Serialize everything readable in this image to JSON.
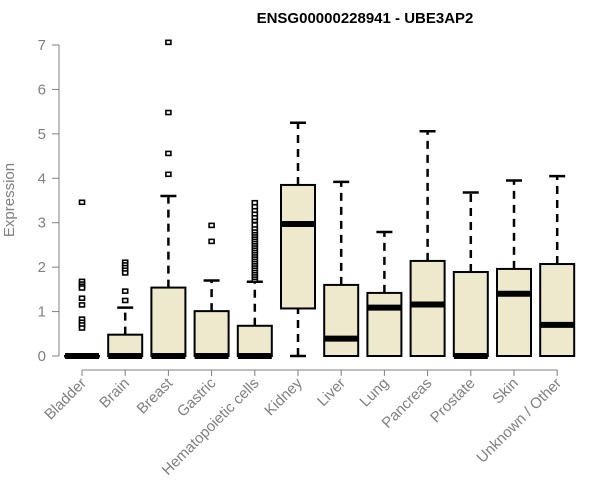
{
  "chart_data": {
    "type": "boxplot",
    "title": "ENSG00000228941 - UBE3AP2",
    "xlabel": "",
    "ylabel": "Expression",
    "ylim": [
      0,
      7
    ],
    "yticks": [
      "0",
      "1",
      "2",
      "3",
      "4",
      "5",
      "6",
      "7"
    ],
    "grid": false,
    "box_color": "#EEE8CD",
    "categories": [
      "Bladder",
      "Brain",
      "Breast",
      "Gastric",
      "Hematopoietic cells",
      "Kidney",
      "Liver",
      "Lung",
      "Pancreas",
      "Prostate",
      "Skin",
      "Unknown / Other"
    ],
    "boxes": [
      {
        "min": 0,
        "q1": 0,
        "median": 0,
        "q3": 0,
        "max": 0,
        "outliers": [
          3.46,
          1.68,
          1.62,
          1.57,
          1.53,
          1.3,
          1.15,
          0.83,
          0.76,
          0.7,
          0.63
        ]
      },
      {
        "min": 0,
        "q1": 0,
        "median": 0,
        "q3": 0.48,
        "max": 1.09,
        "outliers": [
          2.11,
          2.05,
          1.99,
          1.93,
          1.87,
          1.46,
          1.25
        ]
      },
      {
        "min": 0,
        "q1": 0,
        "median": 0,
        "q3": 1.54,
        "max": 3.6,
        "outliers": [
          7.06,
          5.48,
          4.56,
          4.09
        ]
      },
      {
        "min": 0,
        "q1": 0,
        "median": 0,
        "q3": 1.01,
        "max": 1.7,
        "outliers": [
          2.94,
          2.58
        ]
      },
      {
        "min": 0,
        "q1": 0,
        "median": 0,
        "q3": 0.68,
        "max": 1.67,
        "outliers": [
          1.72,
          1.77,
          1.82,
          1.87,
          1.92,
          1.97,
          2.02,
          2.07,
          2.12,
          2.17,
          2.22,
          2.27,
          2.32,
          2.37,
          2.42,
          2.47,
          2.52,
          2.57,
          2.62,
          2.67,
          2.72,
          2.77,
          2.82,
          2.88,
          2.95,
          3.05,
          3.12,
          3.2,
          3.28,
          3.36,
          3.45
        ]
      },
      {
        "min": 0,
        "q1": 1.07,
        "median": 2.97,
        "q3": 3.85,
        "max": 5.25,
        "outliers": []
      },
      {
        "min": 0,
        "q1": 0,
        "median": 0.39,
        "q3": 1.6,
        "max": 3.92,
        "outliers": []
      },
      {
        "min": 0,
        "q1": 0,
        "median": 1.09,
        "q3": 1.42,
        "max": 2.79,
        "outliers": []
      },
      {
        "min": 0,
        "q1": 0,
        "median": 1.16,
        "q3": 2.14,
        "max": 5.06,
        "outliers": []
      },
      {
        "min": 0,
        "q1": 0,
        "median": 0,
        "q3": 1.89,
        "max": 3.68,
        "outliers": []
      },
      {
        "min": 0,
        "q1": 0,
        "median": 1.4,
        "q3": 1.96,
        "max": 3.95,
        "outliers": []
      },
      {
        "min": 0,
        "q1": 0,
        "median": 0.7,
        "q3": 2.07,
        "max": 4.05,
        "outliers": []
      }
    ]
  }
}
